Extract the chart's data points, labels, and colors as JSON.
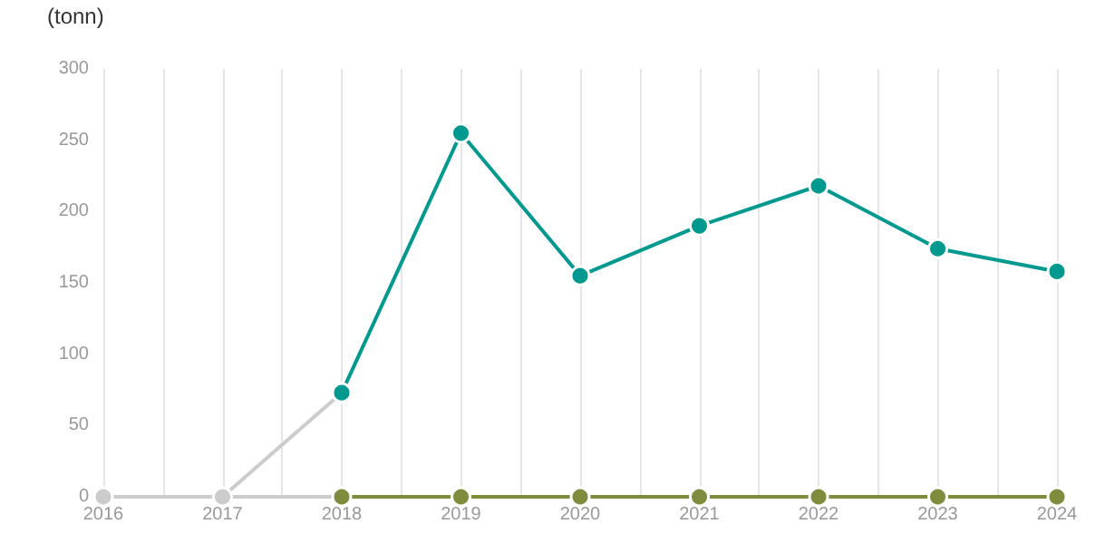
{
  "chart_data": {
    "type": "line",
    "ylabel": "(tonn)",
    "xlim": [
      2016,
      2024
    ],
    "xticks": [
      2016,
      {
        "value": 2016.5,
        "label": null
      },
      2017,
      {
        "value": 2017.5,
        "label": null
      },
      2018,
      {
        "value": 2018.5,
        "label": null
      },
      2019,
      {
        "value": 2019.5,
        "label": null
      },
      2020,
      {
        "value": 2020.5,
        "label": null
      },
      2021,
      {
        "value": 2021.5,
        "label": null
      },
      2022,
      {
        "value": 2022.5,
        "label": null
      },
      2023,
      {
        "value": 2023.5,
        "label": null
      },
      2024
    ],
    "ylim": [
      0,
      300
    ],
    "yticks": [
      0,
      50,
      100,
      150,
      200,
      250,
      300
    ],
    "grid": "x",
    "marker": "circle",
    "line_style": "solid",
    "series": [
      {
        "color": "#cccccc",
        "x": [
          2016,
          2017,
          2018
        ],
        "values": [
          0,
          0,
          73
        ]
      },
      {
        "color": "#7f8c3d",
        "x": [
          2018,
          2019,
          2020,
          2021,
          2022,
          2023,
          2024
        ],
        "values": [
          0,
          0,
          0,
          0,
          0,
          0,
          0
        ]
      },
      {
        "color": "#00998f",
        "x": [
          2018,
          2019,
          2020,
          2021,
          2022,
          2023,
          2024
        ],
        "values": [
          73,
          255,
          155,
          190,
          218,
          174,
          158
        ]
      }
    ]
  }
}
